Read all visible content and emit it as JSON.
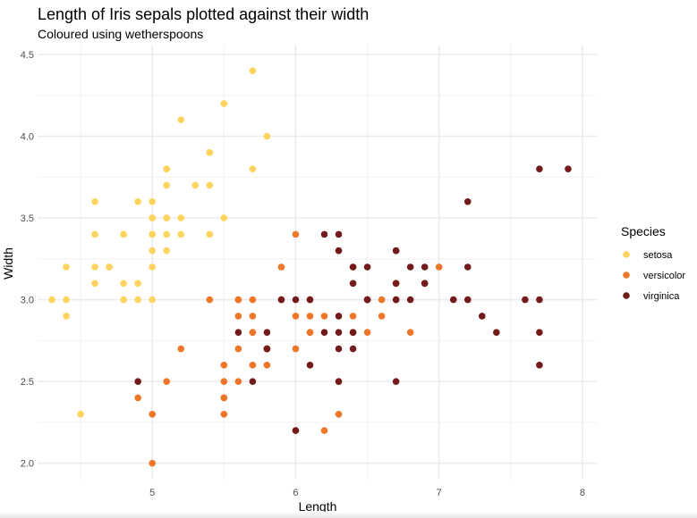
{
  "chart_data": {
    "type": "scatter",
    "title": "Length of Iris sepals plotted against their width",
    "subtitle": "Coloured using wetherspoons",
    "xlabel": "Length",
    "ylabel": "Width",
    "xlim": [
      4.2,
      8.1
    ],
    "ylim": [
      1.9,
      4.56
    ],
    "x_ticks": [
      5,
      6,
      7,
      8
    ],
    "x_tick_labels": [
      "5",
      "6",
      "7",
      "8"
    ],
    "y_ticks": [
      2.0,
      2.5,
      3.0,
      3.5,
      4.0,
      4.5
    ],
    "y_tick_labels": [
      "2.0",
      "2.5",
      "3.0",
      "3.5",
      "4.0",
      "4.5"
    ],
    "grid": true,
    "legend": {
      "title": "Species",
      "position": "right"
    },
    "series": [
      {
        "name": "setosa",
        "color": "#FFD45E",
        "points": [
          [
            5.1,
            3.5
          ],
          [
            4.9,
            3.0
          ],
          [
            4.7,
            3.2
          ],
          [
            4.6,
            3.1
          ],
          [
            5.0,
            3.6
          ],
          [
            5.4,
            3.9
          ],
          [
            4.6,
            3.4
          ],
          [
            5.0,
            3.4
          ],
          [
            4.4,
            2.9
          ],
          [
            4.9,
            3.1
          ],
          [
            5.4,
            3.7
          ],
          [
            4.8,
            3.4
          ],
          [
            4.8,
            3.0
          ],
          [
            4.3,
            3.0
          ],
          [
            5.8,
            4.0
          ],
          [
            5.7,
            4.4
          ],
          [
            5.4,
            3.9
          ],
          [
            5.1,
            3.5
          ],
          [
            5.7,
            3.8
          ],
          [
            5.1,
            3.8
          ],
          [
            5.4,
            3.4
          ],
          [
            5.1,
            3.7
          ],
          [
            4.6,
            3.6
          ],
          [
            5.1,
            3.3
          ],
          [
            4.8,
            3.4
          ],
          [
            5.0,
            3.0
          ],
          [
            5.0,
            3.4
          ],
          [
            5.2,
            3.5
          ],
          [
            5.2,
            3.4
          ],
          [
            4.7,
            3.2
          ],
          [
            4.8,
            3.1
          ],
          [
            5.4,
            3.4
          ],
          [
            5.2,
            4.1
          ],
          [
            5.5,
            4.2
          ],
          [
            4.9,
            3.1
          ],
          [
            5.0,
            3.2
          ],
          [
            5.5,
            3.5
          ],
          [
            4.9,
            3.6
          ],
          [
            4.4,
            3.0
          ],
          [
            5.1,
            3.4
          ],
          [
            5.0,
            3.5
          ],
          [
            4.5,
            2.3
          ],
          [
            4.4,
            3.2
          ],
          [
            5.0,
            3.5
          ],
          [
            5.1,
            3.8
          ],
          [
            4.8,
            3.0
          ],
          [
            5.1,
            3.8
          ],
          [
            4.6,
            3.2
          ],
          [
            5.3,
            3.7
          ],
          [
            5.0,
            3.3
          ]
        ]
      },
      {
        "name": "versicolor",
        "color": "#EE7628",
        "points": [
          [
            7.0,
            3.2
          ],
          [
            6.4,
            3.2
          ],
          [
            6.9,
            3.1
          ],
          [
            5.5,
            2.3
          ],
          [
            6.5,
            2.8
          ],
          [
            5.7,
            2.8
          ],
          [
            6.3,
            3.3
          ],
          [
            4.9,
            2.4
          ],
          [
            6.6,
            2.9
          ],
          [
            5.2,
            2.7
          ],
          [
            5.0,
            2.0
          ],
          [
            5.9,
            3.0
          ],
          [
            6.0,
            2.2
          ],
          [
            6.1,
            2.9
          ],
          [
            5.6,
            2.9
          ],
          [
            6.7,
            3.1
          ],
          [
            5.6,
            3.0
          ],
          [
            5.8,
            2.7
          ],
          [
            6.2,
            2.2
          ],
          [
            5.6,
            2.5
          ],
          [
            5.9,
            3.2
          ],
          [
            6.1,
            2.8
          ],
          [
            6.3,
            2.5
          ],
          [
            6.1,
            2.8
          ],
          [
            6.4,
            2.9
          ],
          [
            6.6,
            3.0
          ],
          [
            6.8,
            2.8
          ],
          [
            6.7,
            3.0
          ],
          [
            6.0,
            2.9
          ],
          [
            5.7,
            2.6
          ],
          [
            5.5,
            2.4
          ],
          [
            5.5,
            2.4
          ],
          [
            5.8,
            2.7
          ],
          [
            6.0,
            2.7
          ],
          [
            5.4,
            3.0
          ],
          [
            6.0,
            3.4
          ],
          [
            6.7,
            3.1
          ],
          [
            6.3,
            2.3
          ],
          [
            5.6,
            3.0
          ],
          [
            5.5,
            2.5
          ],
          [
            5.5,
            2.6
          ],
          [
            6.1,
            3.0
          ],
          [
            5.8,
            2.6
          ],
          [
            5.0,
            2.3
          ],
          [
            5.6,
            2.7
          ],
          [
            5.7,
            3.0
          ],
          [
            5.7,
            2.9
          ],
          [
            6.2,
            2.9
          ],
          [
            5.1,
            2.5
          ],
          [
            5.7,
            2.8
          ]
        ]
      },
      {
        "name": "virginica",
        "color": "#731A1A",
        "points": [
          [
            6.3,
            3.3
          ],
          [
            5.8,
            2.7
          ],
          [
            7.1,
            3.0
          ],
          [
            6.3,
            2.9
          ],
          [
            6.5,
            3.0
          ],
          [
            7.6,
            3.0
          ],
          [
            4.9,
            2.5
          ],
          [
            7.3,
            2.9
          ],
          [
            6.7,
            2.5
          ],
          [
            7.2,
            3.6
          ],
          [
            6.5,
            3.2
          ],
          [
            6.4,
            2.7
          ],
          [
            6.8,
            3.0
          ],
          [
            5.7,
            2.5
          ],
          [
            5.8,
            2.8
          ],
          [
            6.4,
            3.2
          ],
          [
            6.5,
            3.0
          ],
          [
            7.7,
            3.8
          ],
          [
            7.7,
            2.6
          ],
          [
            6.0,
            2.2
          ],
          [
            6.9,
            3.2
          ],
          [
            5.6,
            2.8
          ],
          [
            7.7,
            2.8
          ],
          [
            6.3,
            2.7
          ],
          [
            6.7,
            3.3
          ],
          [
            7.2,
            3.2
          ],
          [
            6.2,
            2.8
          ],
          [
            6.1,
            3.0
          ],
          [
            6.4,
            2.8
          ],
          [
            7.2,
            3.0
          ],
          [
            7.4,
            2.8
          ],
          [
            7.9,
            3.8
          ],
          [
            6.4,
            2.8
          ],
          [
            6.3,
            2.8
          ],
          [
            6.1,
            2.6
          ],
          [
            7.7,
            3.0
          ],
          [
            6.3,
            3.4
          ],
          [
            6.4,
            3.1
          ],
          [
            6.0,
            3.0
          ],
          [
            6.9,
            3.1
          ],
          [
            6.7,
            3.1
          ],
          [
            6.9,
            3.1
          ],
          [
            5.8,
            2.7
          ],
          [
            6.8,
            3.2
          ],
          [
            6.7,
            3.3
          ],
          [
            6.7,
            3.0
          ],
          [
            6.3,
            2.5
          ],
          [
            6.5,
            3.0
          ],
          [
            6.2,
            3.4
          ],
          [
            5.9,
            3.0
          ]
        ]
      }
    ]
  }
}
